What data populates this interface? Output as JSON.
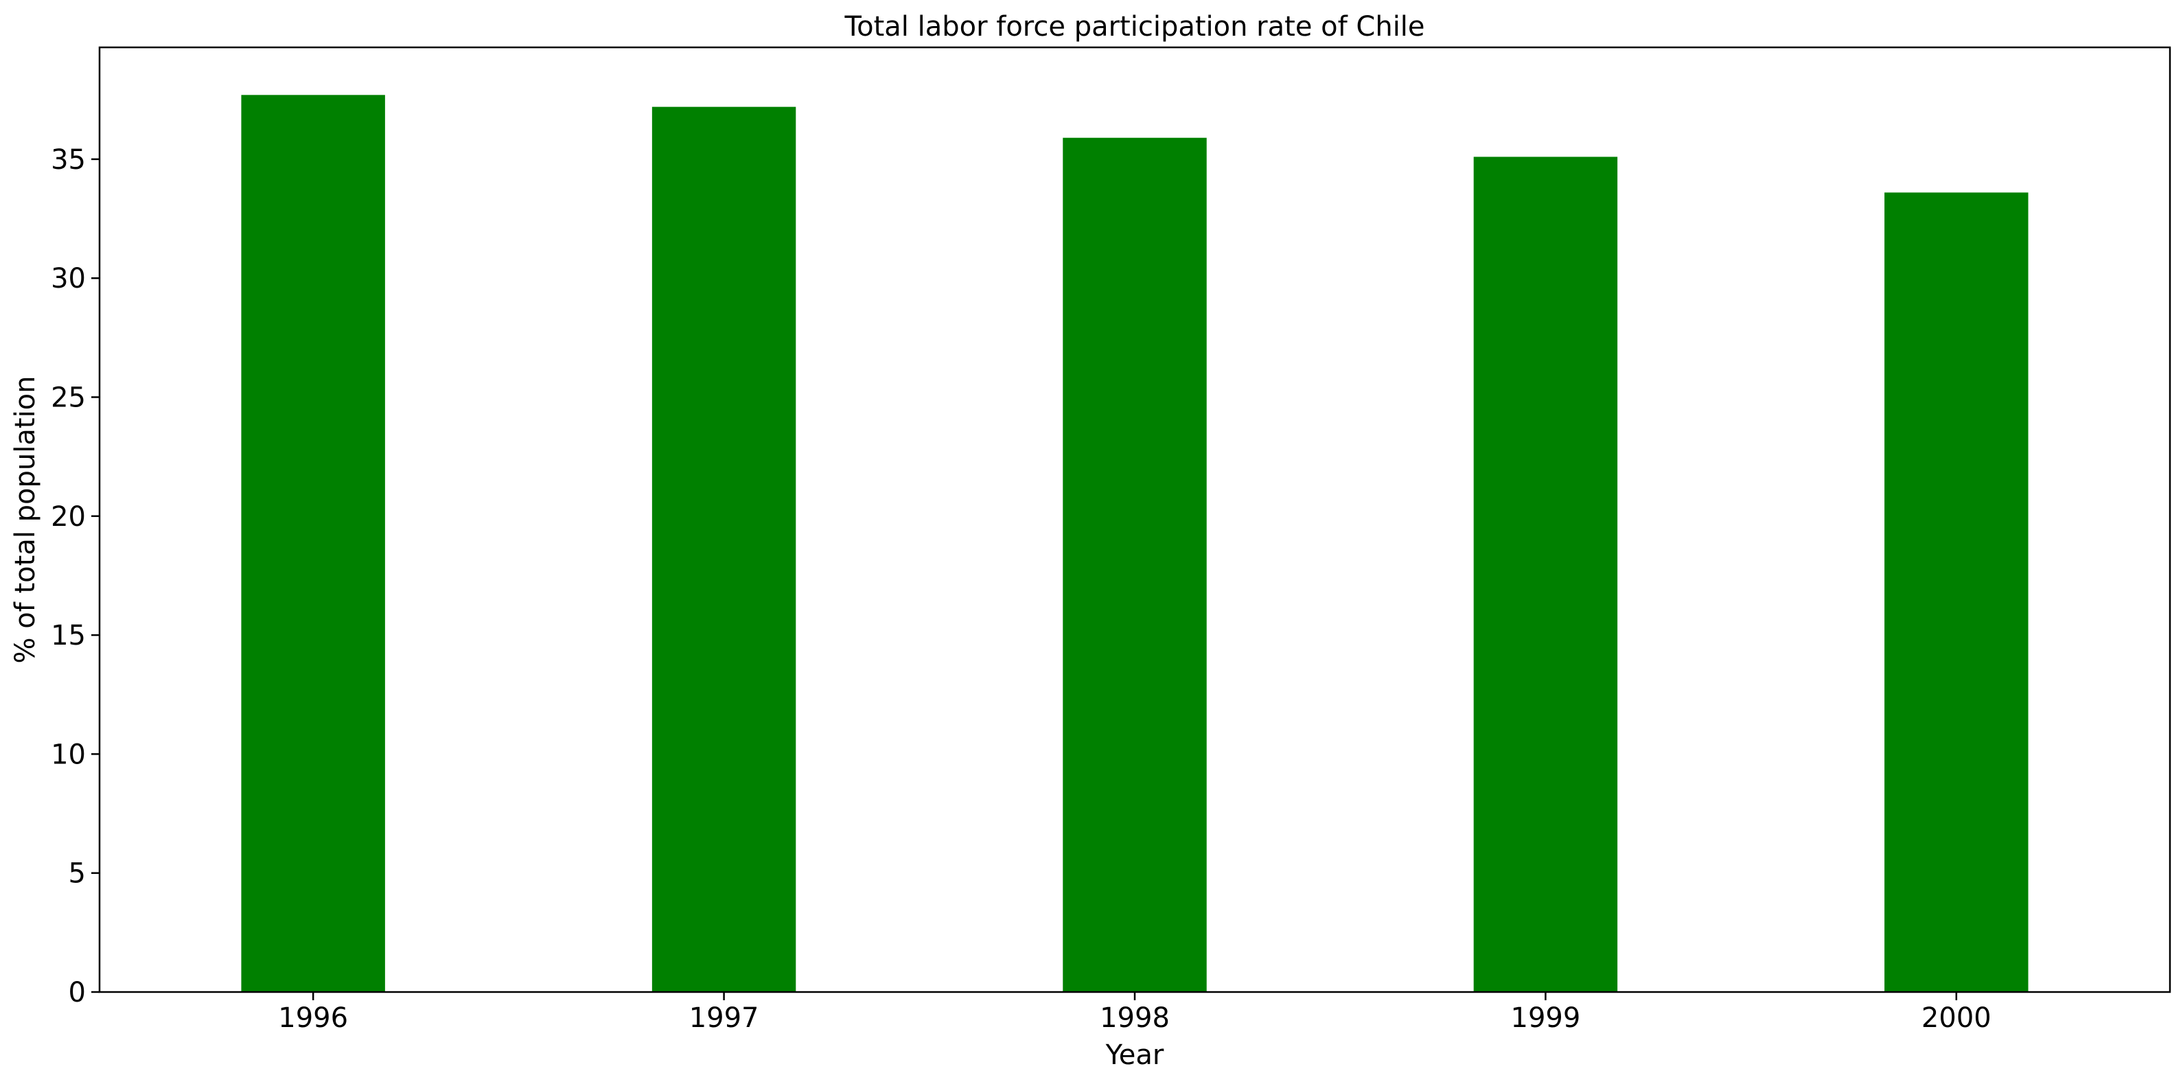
{
  "chart_data": {
    "type": "bar",
    "title": "Total labor force participation rate of Chile",
    "xlabel": "Year",
    "ylabel": "% of total population",
    "categories": [
      "1996",
      "1997",
      "1998",
      "1999",
      "2000"
    ],
    "values": [
      37.7,
      37.2,
      35.9,
      35.1,
      33.6
    ],
    "ylim": [
      0,
      39.7
    ],
    "yticks": [
      0,
      5,
      10,
      15,
      20,
      25,
      30,
      35
    ],
    "bar_color": "#008000",
    "grid": false,
    "legend": "none"
  }
}
